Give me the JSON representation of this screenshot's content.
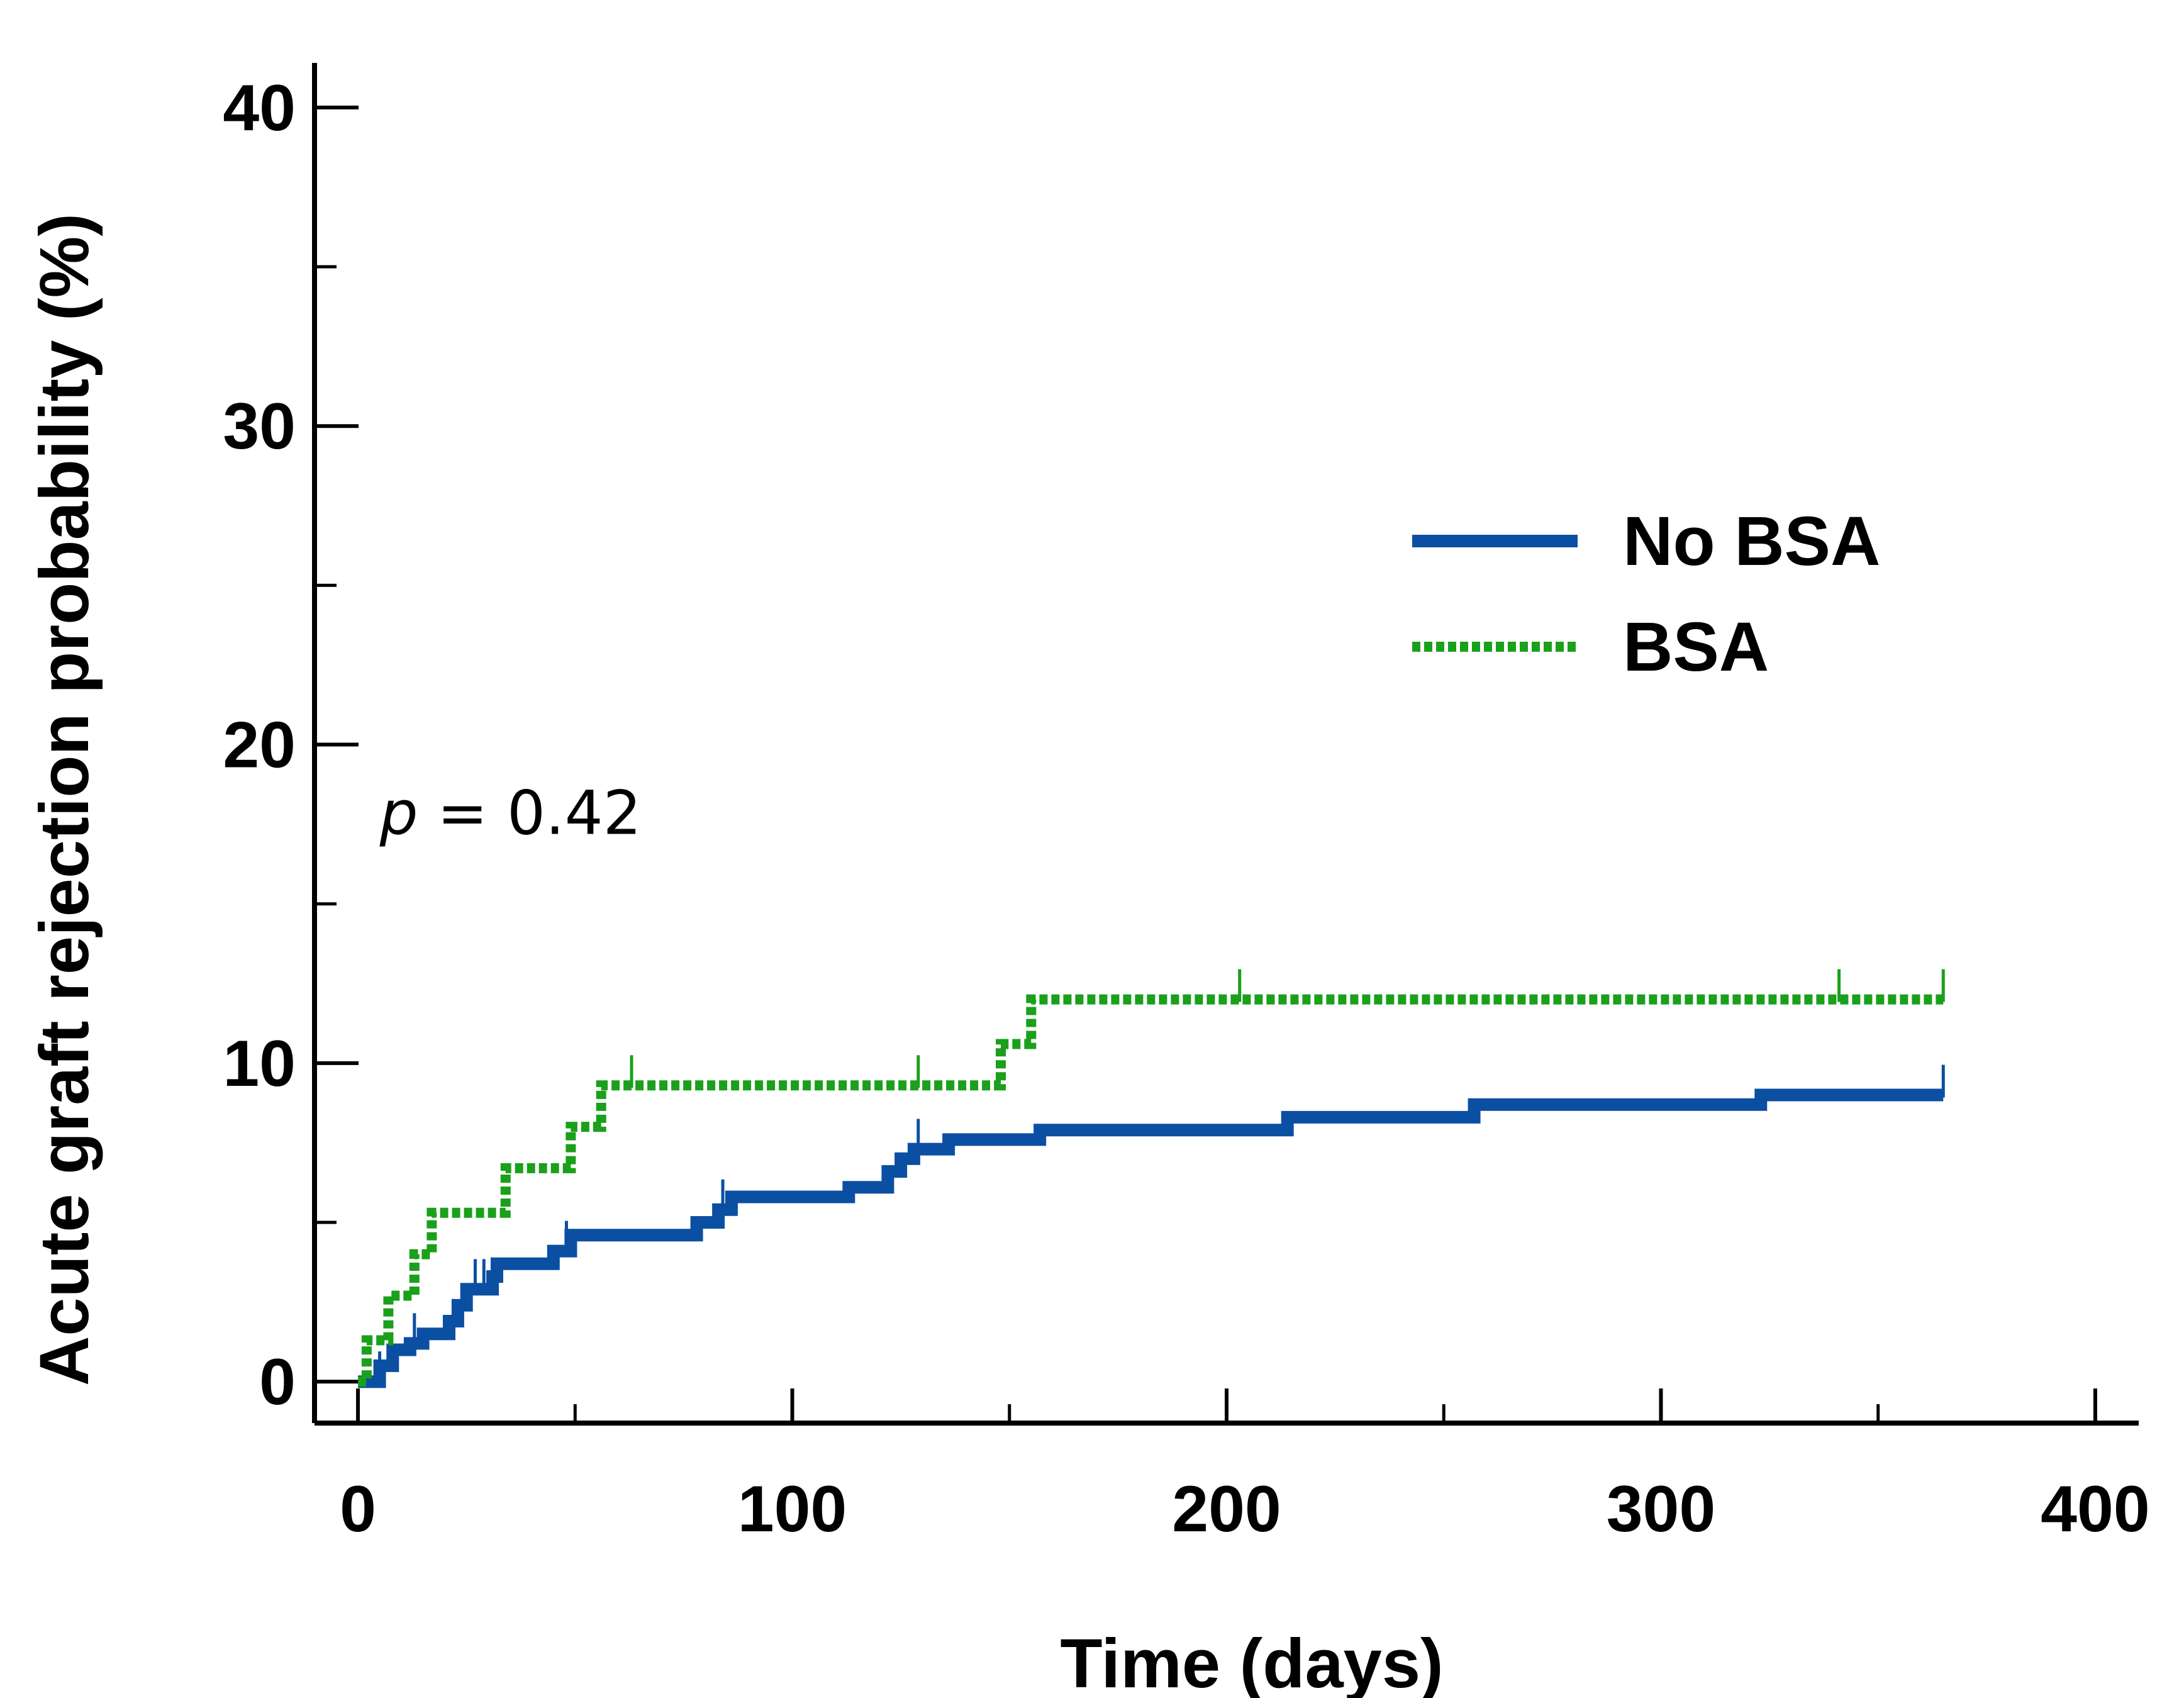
{
  "chart_data": {
    "type": "line",
    "subtype": "kaplan-meier-cumulative-incidence",
    "title": "",
    "xlabel": "Time (days)",
    "ylabel": "Acute graft rejection probability (%)",
    "xlim": [
      -10,
      410
    ],
    "ylim": [
      -1.3,
      41.4
    ],
    "x_ticks": [
      0,
      100,
      200,
      300,
      400
    ],
    "x_tick_labels": [
      "0",
      "100",
      "200",
      "300",
      "400"
    ],
    "x_minor_ticks": [
      50,
      150,
      250,
      350
    ],
    "y_ticks": [
      0,
      10,
      20,
      30,
      40
    ],
    "y_tick_labels": [
      "0",
      "10",
      "20",
      "30",
      "40"
    ],
    "y_minor_ticks": [
      5,
      15,
      25,
      35
    ],
    "grid": false,
    "legend_position": "upper-right",
    "annotation": {
      "italic": "p",
      "rest": " = 0.42"
    },
    "series": [
      {
        "name": "No BSA",
        "color": "#0b4fa3",
        "style": "solid",
        "points": [
          [
            0,
            0
          ],
          [
            5,
            0
          ],
          [
            5,
            0.5
          ],
          [
            8,
            0.5
          ],
          [
            8,
            1.0
          ],
          [
            12,
            1.0
          ],
          [
            12,
            1.2
          ],
          [
            15,
            1.2
          ],
          [
            15,
            1.5
          ],
          [
            21,
            1.5
          ],
          [
            21,
            1.9
          ],
          [
            23,
            1.9
          ],
          [
            23,
            2.4
          ],
          [
            25,
            2.4
          ],
          [
            25,
            2.9
          ],
          [
            31,
            2.9
          ],
          [
            31,
            3.3
          ],
          [
            32,
            3.3
          ],
          [
            32,
            3.7
          ],
          [
            45,
            3.7
          ],
          [
            45,
            4.1
          ],
          [
            49,
            4.1
          ],
          [
            49,
            4.6
          ],
          [
            78,
            4.6
          ],
          [
            78,
            5.0
          ],
          [
            83,
            5.0
          ],
          [
            83,
            5.4
          ],
          [
            86,
            5.4
          ],
          [
            86,
            5.8
          ],
          [
            113,
            5.8
          ],
          [
            113,
            6.1
          ],
          [
            122,
            6.1
          ],
          [
            122,
            6.6
          ],
          [
            125,
            6.6
          ],
          [
            125,
            7.0
          ],
          [
            128,
            7.0
          ],
          [
            128,
            7.3
          ],
          [
            136,
            7.3
          ],
          [
            136,
            7.6
          ],
          [
            157,
            7.6
          ],
          [
            157,
            7.9
          ],
          [
            214,
            7.9
          ],
          [
            214,
            8.3
          ],
          [
            257,
            8.3
          ],
          [
            257,
            8.7
          ],
          [
            323,
            8.7
          ],
          [
            323,
            9.0
          ],
          [
            365,
            9.0
          ]
        ],
        "censor_marks": [
          [
            5,
            0
          ],
          [
            13,
            1.2
          ],
          [
            27,
            2.9
          ],
          [
            29,
            2.9
          ],
          [
            48,
            4.1
          ],
          [
            84,
            5.4
          ],
          [
            129,
            7.3
          ],
          [
            365,
            9.0
          ]
        ]
      },
      {
        "name": "BSA",
        "color": "#1aa01a",
        "style": "dotted",
        "points": [
          [
            0,
            0
          ],
          [
            2,
            0
          ],
          [
            2,
            1.3
          ],
          [
            7,
            1.3
          ],
          [
            7,
            2.7
          ],
          [
            13,
            2.7
          ],
          [
            13,
            4.0
          ],
          [
            17,
            4.0
          ],
          [
            17,
            5.3
          ],
          [
            34,
            5.3
          ],
          [
            34,
            6.7
          ],
          [
            49,
            6.7
          ],
          [
            49,
            8.0
          ],
          [
            56,
            8.0
          ],
          [
            56,
            9.3
          ],
          [
            148,
            9.3
          ],
          [
            148,
            10.6
          ],
          [
            155,
            10.6
          ],
          [
            155,
            12.0
          ],
          [
            365,
            12.0
          ]
        ],
        "censor_marks": [
          [
            63,
            9.3
          ],
          [
            129,
            9.3
          ],
          [
            203,
            12.0
          ],
          [
            341,
            12.0
          ],
          [
            365,
            12.0
          ]
        ]
      }
    ]
  }
}
